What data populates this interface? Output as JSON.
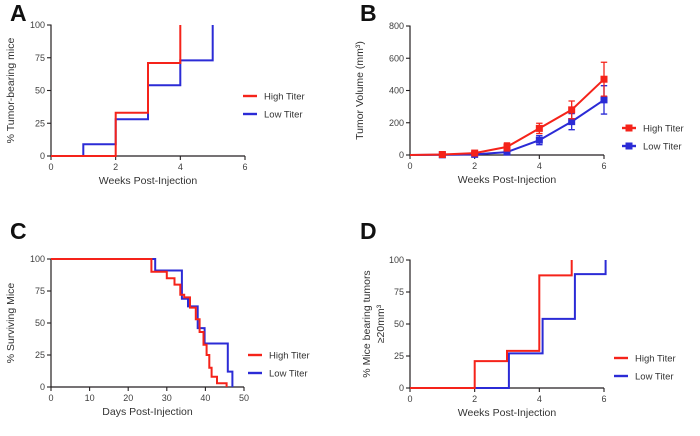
{
  "figure": {
    "title": "",
    "background": "#ffffff",
    "colors": {
      "high_titer": "#f5231a",
      "low_titer": "#2b2bd6",
      "axis": "#231f20",
      "text": "#404040",
      "panel_letter": "#111111"
    },
    "legend_labels": [
      "High Titer",
      "Low Titer"
    ]
  },
  "chart_data": [
    {
      "panel": "A",
      "type": "line",
      "line_style": "step",
      "title": "",
      "xlabel": "Weeks Post-Injection",
      "ylabel": "% Tumor-bearing mice",
      "xlim": [
        0,
        6
      ],
      "ylim": [
        0,
        100
      ],
      "xticks": [
        0,
        2,
        4,
        6
      ],
      "yticks": [
        0,
        25,
        50,
        75,
        100
      ],
      "grid": false,
      "legend_position": "right",
      "series": [
        {
          "name": "High Titer",
          "color_key": "high_titer",
          "points": [
            [
              0,
              0
            ],
            [
              2,
              0
            ],
            [
              2,
              33
            ],
            [
              3,
              33
            ],
            [
              3,
              71
            ],
            [
              4,
              71
            ],
            [
              4,
              100
            ]
          ]
        },
        {
          "name": "Low Titer",
          "color_key": "low_titer",
          "points": [
            [
              0,
              0
            ],
            [
              1,
              0
            ],
            [
              1,
              9
            ],
            [
              2,
              9
            ],
            [
              2,
              28
            ],
            [
              3,
              28
            ],
            [
              3,
              54
            ],
            [
              4,
              54
            ],
            [
              4,
              73
            ],
            [
              5,
              73
            ],
            [
              5,
              100
            ]
          ]
        }
      ]
    },
    {
      "panel": "B",
      "type": "line",
      "line_style": "markers-error-bars",
      "title": "",
      "xlabel": "Weeks Post-Injection",
      "ylabel": "Tumor Volume (mm³)",
      "xlim": [
        0,
        6
      ],
      "ylim": [
        0,
        800
      ],
      "xticks": [
        0,
        2,
        4,
        6
      ],
      "yticks": [
        0,
        200,
        400,
        600,
        800
      ],
      "grid": false,
      "legend_position": "right",
      "series": [
        {
          "name": "High Titer",
          "color_key": "high_titer",
          "x": [
            0,
            1,
            2,
            3,
            4,
            5,
            6
          ],
          "y": [
            0,
            3,
            12,
            50,
            165,
            280,
            470
          ],
          "err": [
            0,
            3,
            6,
            25,
            32,
            55,
            105
          ],
          "marker": "square",
          "marker_start": 1
        },
        {
          "name": "Low Titer",
          "color_key": "low_titer",
          "x": [
            0,
            1,
            2,
            3,
            4,
            5,
            6
          ],
          "y": [
            0,
            1,
            4,
            18,
            92,
            207,
            342
          ],
          "err": [
            0,
            2,
            3,
            10,
            28,
            50,
            88
          ],
          "marker": "square",
          "marker_start": 1
        }
      ]
    },
    {
      "panel": "C",
      "type": "line",
      "line_style": "step",
      "title": "",
      "xlabel": "Days Post-Injection",
      "ylabel": "% Surviving Mice",
      "xlim": [
        0,
        50
      ],
      "ylim": [
        0,
        100
      ],
      "xticks": [
        0,
        10,
        20,
        30,
        40,
        50
      ],
      "yticks": [
        0,
        25,
        50,
        75,
        100
      ],
      "grid": false,
      "legend_position": "right",
      "series": [
        {
          "name": "High Titer",
          "color_key": "high_titer",
          "points": [
            [
              0,
              100
            ],
            [
              26,
              100
            ],
            [
              26,
              90
            ],
            [
              30,
              90
            ],
            [
              30,
              85
            ],
            [
              32,
              85
            ],
            [
              32,
              80
            ],
            [
              33.5,
              80
            ],
            [
              33.5,
              72
            ],
            [
              34.5,
              72
            ],
            [
              34.5,
              70
            ],
            [
              36,
              70
            ],
            [
              36,
              62
            ],
            [
              37.5,
              62
            ],
            [
              37.5,
              53
            ],
            [
              38.5,
              53
            ],
            [
              38.5,
              43
            ],
            [
              39.5,
              43
            ],
            [
              39.5,
              33
            ],
            [
              40.3,
              33
            ],
            [
              40.3,
              25
            ],
            [
              41,
              25
            ],
            [
              41,
              15
            ],
            [
              41.6,
              15
            ],
            [
              41.6,
              8
            ],
            [
              43,
              8
            ],
            [
              43,
              3
            ],
            [
              45.5,
              3
            ],
            [
              45.5,
              0
            ]
          ]
        },
        {
          "name": "Low Titer",
          "color_key": "low_titer",
          "points": [
            [
              0,
              100
            ],
            [
              27,
              100
            ],
            [
              27,
              91
            ],
            [
              33.9,
              91
            ],
            [
              33.9,
              69
            ],
            [
              35.5,
              69
            ],
            [
              35.5,
              63
            ],
            [
              38,
              63
            ],
            [
              38,
              46
            ],
            [
              39.8,
              46
            ],
            [
              39.8,
              34
            ],
            [
              45.8,
              34
            ],
            [
              45.8,
              12
            ],
            [
              47,
              12
            ],
            [
              47,
              0
            ]
          ]
        }
      ]
    },
    {
      "panel": "D",
      "type": "line",
      "line_style": "step",
      "title": "",
      "xlabel": "Weeks Post-Injection",
      "ylabel": "% Mice bearing tumors",
      "ylabel2": "≥20mm³",
      "xlim": [
        0,
        6
      ],
      "ylim": [
        0,
        100
      ],
      "xticks": [
        0,
        2,
        4,
        6
      ],
      "yticks": [
        0,
        25,
        50,
        75,
        100
      ],
      "grid": false,
      "legend_position": "right",
      "series": [
        {
          "name": "High Titer",
          "color_key": "high_titer",
          "points": [
            [
              0,
              0
            ],
            [
              2,
              0
            ],
            [
              2,
              21
            ],
            [
              3,
              21
            ],
            [
              3,
              29
            ],
            [
              4,
              29
            ],
            [
              4,
              88
            ],
            [
              5,
              88
            ],
            [
              5,
              100
            ]
          ]
        },
        {
          "name": "Low Titer",
          "color_key": "low_titer",
          "points": [
            [
              0,
              0
            ],
            [
              3.06,
              0
            ],
            [
              3.06,
              27
            ],
            [
              4.1,
              27
            ],
            [
              4.1,
              54
            ],
            [
              5.1,
              54
            ],
            [
              5.1,
              89
            ],
            [
              6.05,
              89
            ],
            [
              6.05,
              100
            ]
          ]
        }
      ]
    }
  ]
}
